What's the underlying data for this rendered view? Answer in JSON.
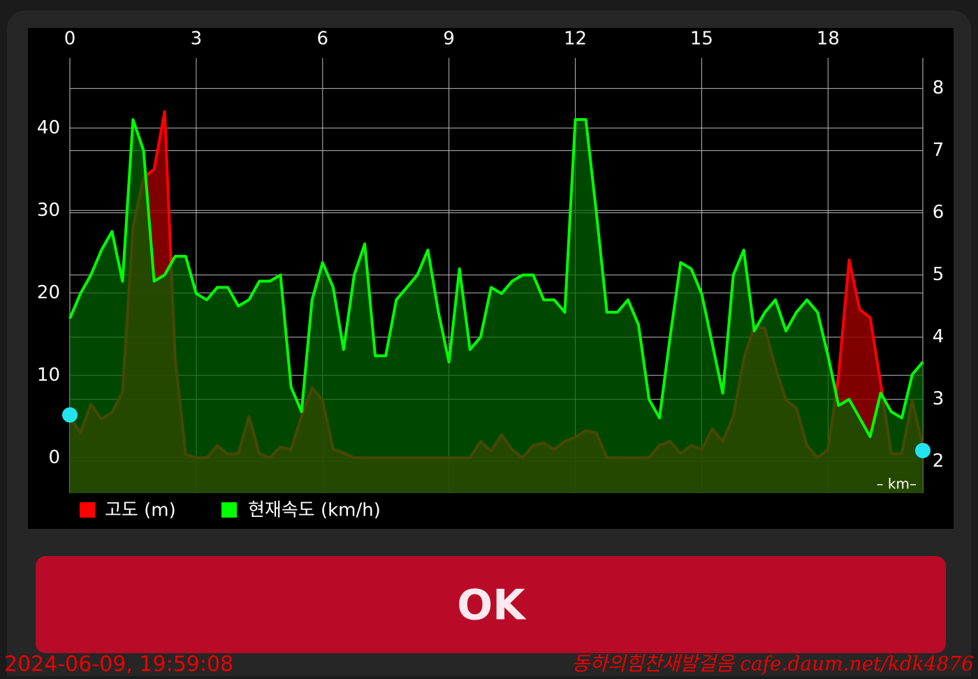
{
  "chart_data": {
    "type": "line",
    "x_label": "– km–",
    "x": [
      0,
      0.25,
      0.5,
      0.75,
      1,
      1.25,
      1.5,
      1.75,
      2,
      2.25,
      2.5,
      2.75,
      3,
      3.25,
      3.5,
      3.75,
      4,
      4.25,
      4.5,
      4.75,
      5,
      5.25,
      5.5,
      5.75,
      6,
      6.25,
      6.5,
      6.75,
      7,
      7.25,
      7.5,
      7.75,
      8,
      8.25,
      8.5,
      8.75,
      9,
      9.25,
      9.5,
      9.75,
      10,
      10.25,
      10.5,
      10.75,
      11,
      11.25,
      11.5,
      11.75,
      12,
      12.25,
      12.5,
      12.75,
      13,
      13.25,
      13.5,
      13.75,
      14,
      14.25,
      14.5,
      14.75,
      15,
      15.25,
      15.5,
      15.75,
      16,
      16.25,
      16.5,
      16.75,
      17,
      17.25,
      17.5,
      17.75,
      18,
      18.25,
      18.5,
      18.75,
      19,
      19.25,
      19.5,
      19.75,
      20,
      20.25
    ],
    "series": [
      {
        "name": "고도 (m)",
        "color": "#ff0000",
        "values": [
          5,
          3,
          6.5,
          4.7,
          5.5,
          8,
          28,
          34,
          35,
          42,
          12,
          0.4,
          0,
          0,
          1.5,
          0.4,
          0.5,
          5,
          0.5,
          0,
          1.3,
          1,
          5,
          8.5,
          7,
          1,
          0.6,
          0,
          0,
          0,
          0,
          0,
          0,
          0,
          0,
          0,
          0,
          0,
          0,
          2,
          0.8,
          2.8,
          1,
          0,
          1.5,
          1.8,
          1,
          2,
          2.5,
          3.3,
          3,
          0,
          0,
          0,
          0,
          0,
          1.5,
          2,
          0.5,
          1.5,
          1,
          3.5,
          2,
          5,
          12,
          16,
          15.7,
          11,
          7,
          6,
          1.5,
          0,
          1,
          10,
          24,
          18,
          17,
          9,
          0.5,
          0.5,
          7,
          1.3
        ]
      },
      {
        "name": "현재속도 (km/h)",
        "color": "#00ff00",
        "axis": "y2",
        "values": [
          4.3,
          4.7,
          5.0,
          5.4,
          5.7,
          4.9,
          7.5,
          7.0,
          4.9,
          5.0,
          5.3,
          5.3,
          4.7,
          4.6,
          4.8,
          4.8,
          4.5,
          4.6,
          4.9,
          4.9,
          5.0,
          3.2,
          2.8,
          4.6,
          5.2,
          4.8,
          3.8,
          5.0,
          5.5,
          3.7,
          3.7,
          4.6,
          4.8,
          5.0,
          5.4,
          4.4,
          3.6,
          5.1,
          3.8,
          4.0,
          4.8,
          4.7,
          4.9,
          5.0,
          5.0,
          4.6,
          4.6,
          4.4,
          7.5,
          7.5,
          6.0,
          4.4,
          4.4,
          4.6,
          4.2,
          3.0,
          2.7,
          4.0,
          5.2,
          5.1,
          4.7,
          3.9,
          3.1,
          5.0,
          5.4,
          4.1,
          4.4,
          4.6,
          4.1,
          4.4,
          4.6,
          4.4,
          3.7,
          2.9,
          3.0,
          2.7,
          2.4,
          3.1,
          2.8,
          2.7,
          3.4,
          3.6
        ]
      }
    ],
    "xlim": [
      0,
      20.25
    ],
    "xticks": [
      0,
      3,
      6,
      9,
      12,
      15,
      18
    ],
    "ylim": [
      -4.3,
      48.5
    ],
    "yticks": [
      0,
      10,
      20,
      30,
      40
    ],
    "y2lim": [
      1.49,
      8.49
    ],
    "y2ticks": [
      2,
      3,
      4,
      5,
      6,
      7,
      8
    ],
    "grid": true
  },
  "button": "OK",
  "timestamp": "2024-06-09, 19:59:08",
  "watermark": "동하의힘찬새발걸음 cafe.daum.net/kdk4876"
}
